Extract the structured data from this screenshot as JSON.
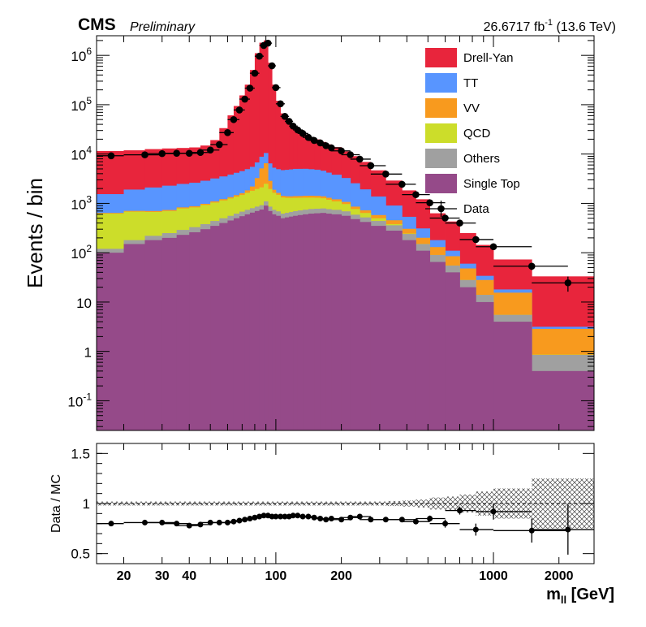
{
  "header": {
    "experiment": "CMS",
    "status": "Preliminary",
    "lumi": "26.6717",
    "lumi_unit": "fb",
    "lumi_exp": "-1",
    "energy": "(13.6 TeV)"
  },
  "chart_data": [
    {
      "type": "bar",
      "subtype": "stacked-histogram",
      "ylabel": "Events / bin",
      "xscale": "log",
      "yscale": "log",
      "xlim": [
        15,
        2900
      ],
      "ylim": [
        0.025,
        2500000
      ],
      "y_ticks": [
        {
          "v": 0.1,
          "base": "10",
          "exp": "-1"
        },
        {
          "v": 1,
          "text": "1"
        },
        {
          "v": 10,
          "text": "10"
        },
        {
          "v": 100,
          "base": "10",
          "exp": "2"
        },
        {
          "v": 1000,
          "base": "10",
          "exp": "3"
        },
        {
          "v": 10000,
          "base": "10",
          "exp": "4"
        },
        {
          "v": 100000,
          "base": "10",
          "exp": "5"
        },
        {
          "v": 1000000,
          "base": "10",
          "exp": "6"
        }
      ],
      "legend": {
        "placement": "top-right",
        "entries": [
          {
            "label": "Drell-Yan",
            "color": "#e8253c",
            "kind": "box"
          },
          {
            "label": "TT",
            "color": "#5895ff",
            "kind": "box"
          },
          {
            "label": "VV",
            "color": "#f89a1e",
            "kind": "box"
          },
          {
            "label": "QCD",
            "color": "#ccdd2a",
            "kind": "box"
          },
          {
            "label": "Others",
            "color": "#a0a0a0",
            "kind": "box"
          },
          {
            "label": "Single Top",
            "color": "#954a89",
            "kind": "box"
          },
          {
            "label": "Data",
            "color": "#000000",
            "kind": "marker"
          }
        ]
      },
      "bin_edges": [
        15,
        20,
        25,
        30,
        35,
        40,
        45,
        50,
        55,
        60,
        64,
        68,
        72,
        76,
        80,
        84,
        88,
        92,
        96,
        100,
        105,
        110,
        115,
        120,
        126,
        133,
        141,
        150,
        160,
        170,
        180,
        200,
        220,
        243,
        273,
        320,
        380,
        440,
        510,
        600,
        700,
        830,
        1000,
        1500,
        2900
      ],
      "stack_order": [
        "Single Top",
        "Others",
        "QCD",
        "VV",
        "TT",
        "Drell-Yan"
      ],
      "series": [
        {
          "name": "Single Top",
          "color": "#954a89",
          "values": [
            100,
            150,
            180,
            200,
            230,
            260,
            300,
            350,
            400,
            450,
            500,
            550,
            600,
            650,
            700,
            750,
            900,
            700,
            600,
            560,
            500,
            520,
            540,
            560,
            580,
            600,
            620,
            630,
            640,
            620,
            600,
            560,
            480,
            420,
            350,
            280,
            180,
            110,
            65,
            40,
            20,
            10,
            4,
            0.4
          ]
        },
        {
          "name": "Others",
          "color": "#a0a0a0",
          "values": [
            20,
            30,
            40,
            50,
            60,
            70,
            80,
            90,
            100,
            110,
            120,
            130,
            140,
            150,
            160,
            170,
            200,
            160,
            140,
            130,
            120,
            125,
            130,
            135,
            140,
            145,
            150,
            150,
            150,
            145,
            140,
            130,
            110,
            100,
            90,
            80,
            60,
            40,
            25,
            15,
            8,
            4,
            1.5,
            0.45
          ]
        },
        {
          "name": "QCD",
          "color": "#ccdd2a",
          "values": [
            500,
            500,
            450,
            450,
            500,
            500,
            550,
            600,
            650,
            700,
            750,
            800,
            900,
            1000,
            1100,
            1200,
            1400,
            1100,
            900,
            800,
            700,
            650,
            620,
            600,
            580,
            560,
            540,
            520,
            480,
            420,
            360,
            280,
            180,
            120,
            60,
            20,
            5,
            1,
            0.2,
            0.05,
            0.01,
            0.01,
            0.01,
            0.01
          ]
        },
        {
          "name": "VV",
          "color": "#f89a1e",
          "values": [
            20,
            25,
            30,
            35,
            40,
            45,
            50,
            60,
            70,
            80,
            100,
            130,
            200,
            400,
            1300,
            3000,
            4000,
            900,
            250,
            140,
            100,
            100,
            100,
            110,
            110,
            120,
            120,
            120,
            120,
            115,
            110,
            100,
            90,
            85,
            80,
            75,
            60,
            50,
            40,
            30,
            20,
            14,
            10,
            2
          ]
        },
        {
          "name": "TT",
          "color": "#5895ff",
          "values": [
            900,
            1200,
            1400,
            1550,
            1650,
            1750,
            1900,
            2100,
            2300,
            2500,
            2700,
            2900,
            3100,
            3300,
            3500,
            3700,
            4000,
            3600,
            3400,
            3300,
            3300,
            3400,
            3500,
            3600,
            3600,
            3600,
            3500,
            3400,
            3200,
            2900,
            2600,
            2200,
            1700,
            1200,
            800,
            450,
            230,
            110,
            50,
            25,
            12,
            6,
            2.5,
            0.3
          ]
        },
        {
          "name": "Drell-Yan",
          "color": "#e8253c",
          "values": [
            10000,
            10000,
            10500,
            10700,
            10800,
            11000,
            12000,
            16000,
            30000,
            57000,
            90000,
            150000,
            250000,
            500000,
            1100000,
            1800000,
            2000000,
            700000,
            250000,
            115000,
            62000,
            48000,
            37000,
            30000,
            25000,
            20000,
            17000,
            15000,
            13000,
            11500,
            10000,
            8000,
            6500,
            5000,
            3300,
            2000,
            1300,
            900,
            450,
            320,
            190,
            110,
            55,
            30
          ]
        }
      ]
    },
    {
      "type": "scatter",
      "subtype": "ratio-with-uncertainty-band",
      "ylabel": "Data / MC",
      "xlabel": "m",
      "xlabel_sub": "ll",
      "xlabel_unit": "[GeV]",
      "xscale": "log",
      "xlim": [
        15,
        2900
      ],
      "ylim": [
        0.4,
        1.6
      ],
      "y_ticks": [
        "0.5",
        "1",
        "1.5"
      ],
      "x_ticks": [
        "20",
        "30",
        "40",
        "100",
        "200",
        "1000",
        "2000"
      ],
      "reference_line": 1,
      "band_halfwidth": [
        0.02,
        0.02,
        0.02,
        0.02,
        0.02,
        0.02,
        0.02,
        0.02,
        0.02,
        0.02,
        0.02,
        0.02,
        0.02,
        0.02,
        0.02,
        0.02,
        0.02,
        0.02,
        0.02,
        0.02,
        0.02,
        0.02,
        0.02,
        0.02,
        0.02,
        0.02,
        0.02,
        0.02,
        0.02,
        0.02,
        0.02,
        0.02,
        0.02,
        0.02,
        0.02,
        0.025,
        0.03,
        0.04,
        0.06,
        0.07,
        0.09,
        0.12,
        0.15,
        0.25
      ],
      "points": {
        "x": [
          17.5,
          25,
          30,
          35,
          40,
          45,
          50,
          55,
          60,
          64,
          68,
          72,
          76,
          80,
          84,
          88,
          92,
          96,
          100,
          105,
          110,
          115,
          120,
          126,
          133,
          141,
          150,
          160,
          170,
          180,
          200,
          220,
          243,
          273,
          320,
          380,
          440,
          510,
          600,
          700,
          830,
          1000,
          1500,
          2200
        ],
        "y": [
          0.8,
          0.81,
          0.81,
          0.8,
          0.78,
          0.79,
          0.81,
          0.81,
          0.81,
          0.82,
          0.83,
          0.84,
          0.85,
          0.86,
          0.87,
          0.88,
          0.88,
          0.87,
          0.87,
          0.87,
          0.87,
          0.87,
          0.88,
          0.88,
          0.87,
          0.87,
          0.86,
          0.85,
          0.84,
          0.85,
          0.84,
          0.86,
          0.87,
          0.84,
          0.84,
          0.84,
          0.82,
          0.85,
          0.8,
          0.93,
          0.74,
          0.92,
          0.73,
          0.74
        ],
        "xerr_low": [
          2.5,
          5,
          5,
          5,
          5,
          5,
          5,
          5,
          5,
          4,
          4,
          4,
          4,
          4,
          4,
          4,
          4,
          4,
          4,
          5,
          5,
          5,
          5,
          6,
          7,
          8,
          9,
          10,
          10,
          10,
          20,
          20,
          23,
          30,
          47,
          60,
          60,
          70,
          90,
          100,
          130,
          170,
          500,
          700
        ],
        "xerr_high": [
          2.5,
          5,
          5,
          5,
          5,
          5,
          5,
          5,
          4,
          4,
          4,
          4,
          4,
          4,
          4,
          4,
          4,
          4,
          5,
          5,
          5,
          5,
          6,
          7,
          8,
          9,
          10,
          10,
          10,
          20,
          20,
          23,
          30,
          47,
          60,
          60,
          70,
          90,
          100,
          130,
          170,
          500,
          700,
          700
        ],
        "yerr": [
          0.01,
          0.01,
          0.01,
          0.01,
          0.01,
          0.01,
          0.01,
          0.01,
          0.01,
          0.01,
          0.01,
          0.01,
          0.01,
          0.01,
          0.01,
          0.01,
          0.01,
          0.01,
          0.01,
          0.01,
          0.01,
          0.01,
          0.01,
          0.01,
          0.01,
          0.01,
          0.01,
          0.01,
          0.01,
          0.01,
          0.01,
          0.01,
          0.01,
          0.01,
          0.01,
          0.015,
          0.02,
          0.03,
          0.04,
          0.04,
          0.06,
          0.08,
          0.12,
          0.25
        ]
      }
    }
  ]
}
